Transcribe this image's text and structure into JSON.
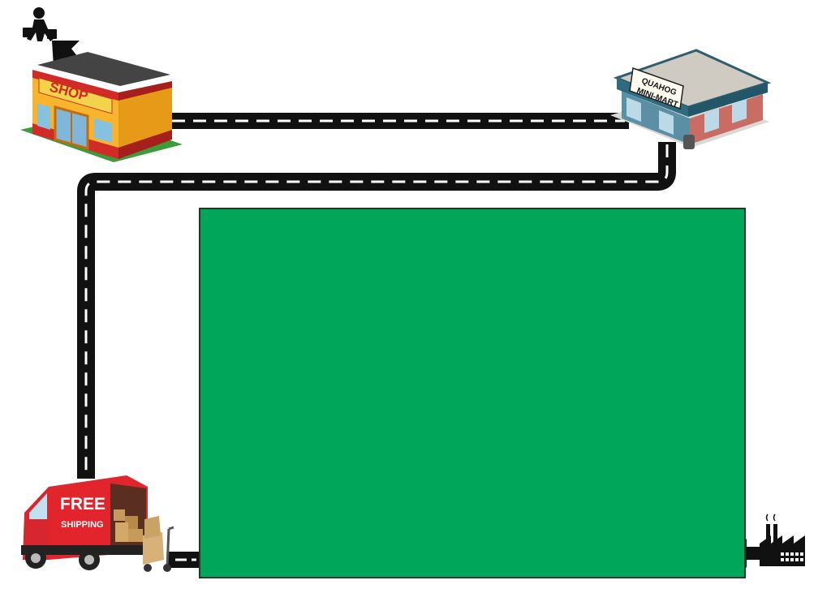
{
  "shop": {
    "sign": "SHOP"
  },
  "minimart": {
    "sign_line1": "QUAHOG",
    "sign_line2": "MINI-MART"
  },
  "truck": {
    "label_line1": "FREE",
    "label_line2": "SHIPPING"
  },
  "colors": {
    "road": "#111111",
    "road_dash": "#ffffff",
    "panel": "#00a65a",
    "truck_red": "#d7262d",
    "shop_yellow": "#f6a623"
  },
  "icons": [
    "shopper-icon",
    "arrow-up-left-icon",
    "shop-icon",
    "minimart-icon",
    "delivery-truck-icon",
    "hand-truck-icon",
    "factory-icon",
    "arrow-left-icon"
  ]
}
